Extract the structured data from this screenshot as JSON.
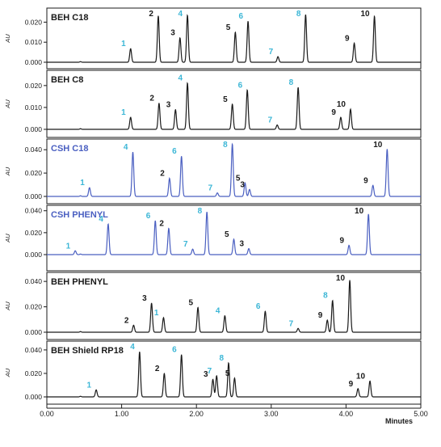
{
  "chart_data": {
    "type": "line",
    "x_range": [
      0,
      5
    ],
    "x_ticks": [
      "0.00",
      "1.00",
      "2.00",
      "3.00",
      "4.00",
      "5.00"
    ],
    "x_tick_values": [
      0,
      1,
      2,
      3,
      4,
      5
    ],
    "xlabel": "Minutes",
    "colors": {
      "black": "#1a1a1a",
      "blue": "#4a5fc1",
      "cyan": "#3bb6d6"
    },
    "panels": [
      {
        "title": "BEH C18",
        "title_color": "black",
        "trace_color": "black",
        "ylabel": "AU",
        "ylim": [
          0,
          0.025
        ],
        "y_ticks": [
          "0.000",
          "0.010",
          "0.020"
        ],
        "y_tick_values": [
          0,
          0.01,
          0.02
        ],
        "peaks": [
          {
            "label": "1",
            "color": "cyan",
            "x": 1.12,
            "y": 0.0068
          },
          {
            "label": "2",
            "color": "black",
            "x": 1.49,
            "y": 0.0232
          },
          {
            "label": "3",
            "color": "black",
            "x": 1.78,
            "y": 0.0122
          },
          {
            "label": "4",
            "color": "cyan",
            "x": 1.88,
            "y": 0.0235
          },
          {
            "label": "5",
            "color": "black",
            "x": 2.52,
            "y": 0.015
          },
          {
            "label": "6",
            "color": "cyan",
            "x": 2.69,
            "y": 0.0205
          },
          {
            "label": "7",
            "color": "cyan",
            "x": 3.09,
            "y": 0.0028
          },
          {
            "label": "8",
            "color": "cyan",
            "x": 3.46,
            "y": 0.0238
          },
          {
            "label": "9",
            "color": "black",
            "x": 4.11,
            "y": 0.0095
          },
          {
            "label": "10",
            "color": "black",
            "x": 4.38,
            "y": 0.023
          }
        ]
      },
      {
        "title": "BEH C8",
        "title_color": "black",
        "trace_color": "black",
        "ylabel": "AU",
        "ylim": [
          0,
          0.024
        ],
        "y_ticks": [
          "0.000",
          "0.010",
          "0.020"
        ],
        "y_tick_values": [
          0,
          0.01,
          0.02
        ],
        "peaks": [
          {
            "label": "1",
            "color": "cyan",
            "x": 1.12,
            "y": 0.0055
          },
          {
            "label": "2",
            "color": "black",
            "x": 1.5,
            "y": 0.012
          },
          {
            "label": "3",
            "color": "black",
            "x": 1.72,
            "y": 0.009
          },
          {
            "label": "4",
            "color": "cyan",
            "x": 1.88,
            "y": 0.0212
          },
          {
            "label": "5",
            "color": "black",
            "x": 2.48,
            "y": 0.0115
          },
          {
            "label": "6",
            "color": "cyan",
            "x": 2.68,
            "y": 0.018
          },
          {
            "label": "7",
            "color": "cyan",
            "x": 3.08,
            "y": 0.002
          },
          {
            "label": "8",
            "color": "cyan",
            "x": 3.36,
            "y": 0.0192
          },
          {
            "label": "9",
            "color": "black",
            "x": 3.93,
            "y": 0.0055
          },
          {
            "label": "10",
            "color": "black",
            "x": 4.06,
            "y": 0.0092
          }
        ]
      },
      {
        "title": "CSH C18",
        "title_color": "blue",
        "trace_color": "blue",
        "ylabel": "AU",
        "ylim": [
          0,
          0.045
        ],
        "y_ticks": [
          "0.000",
          "0.020",
          "0.040"
        ],
        "y_tick_values": [
          0,
          0.02,
          0.04
        ],
        "peaks": [
          {
            "label": "1",
            "color": "cyan",
            "x": 0.57,
            "y": 0.0075
          },
          {
            "label": "4",
            "color": "cyan",
            "x": 1.15,
            "y": 0.038
          },
          {
            "label": "2",
            "color": "black",
            "x": 1.64,
            "y": 0.0155
          },
          {
            "label": "6",
            "color": "cyan",
            "x": 1.8,
            "y": 0.0345
          },
          {
            "label": "7",
            "color": "cyan",
            "x": 2.28,
            "y": 0.003
          },
          {
            "label": "8",
            "color": "cyan",
            "x": 2.48,
            "y": 0.045
          },
          {
            "label": "5",
            "color": "black",
            "x": 2.65,
            "y": 0.0115
          },
          {
            "label": "3",
            "color": "black",
            "x": 2.71,
            "y": 0.006
          },
          {
            "label": "9",
            "color": "black",
            "x": 4.36,
            "y": 0.0095
          },
          {
            "label": "10",
            "color": "black",
            "x": 4.55,
            "y": 0.0405
          }
        ]
      },
      {
        "title": "CSH PHENYL",
        "title_color": "blue",
        "trace_color": "blue",
        "ylabel": "AU",
        "ylim": [
          0,
          0.042
        ],
        "y_ticks": [
          "0.000",
          "0.020",
          "0.040"
        ],
        "y_tick_values": [
          0,
          0.02,
          0.04
        ],
        "peaks": [
          {
            "label": "1",
            "color": "cyan",
            "x": 0.38,
            "y": 0.0035
          },
          {
            "label": "4",
            "color": "cyan",
            "x": 0.82,
            "y": 0.028
          },
          {
            "label": "6",
            "color": "cyan",
            "x": 1.45,
            "y": 0.031
          },
          {
            "label": "2",
            "color": "black",
            "x": 1.63,
            "y": 0.024
          },
          {
            "label": "7",
            "color": "cyan",
            "x": 1.95,
            "y": 0.005
          },
          {
            "label": "8",
            "color": "cyan",
            "x": 2.14,
            "y": 0.039
          },
          {
            "label": "5",
            "color": "black",
            "x": 2.5,
            "y": 0.014
          },
          {
            "label": "3",
            "color": "black",
            "x": 2.7,
            "y": 0.0055
          },
          {
            "label": "9",
            "color": "black",
            "x": 4.04,
            "y": 0.0085
          },
          {
            "label": "10",
            "color": "black",
            "x": 4.3,
            "y": 0.037
          }
        ]
      },
      {
        "title": "BEH PHENYL",
        "title_color": "black",
        "trace_color": "black",
        "ylabel": "AU",
        "ylim": [
          0,
          0.042
        ],
        "y_ticks": [
          "0.000",
          "0.020",
          "0.040"
        ],
        "y_tick_values": [
          0,
          0.02,
          0.04
        ],
        "peaks": [
          {
            "label": "2",
            "color": "black",
            "x": 1.16,
            "y": 0.0055
          },
          {
            "label": "3",
            "color": "black",
            "x": 1.4,
            "y": 0.023
          },
          {
            "label": "1",
            "color": "cyan",
            "x": 1.56,
            "y": 0.0115
          },
          {
            "label": "5",
            "color": "black",
            "x": 2.02,
            "y": 0.0195
          },
          {
            "label": "4",
            "color": "cyan",
            "x": 2.38,
            "y": 0.013
          },
          {
            "label": "6",
            "color": "cyan",
            "x": 2.92,
            "y": 0.0165
          },
          {
            "label": "7",
            "color": "cyan",
            "x": 3.36,
            "y": 0.003
          },
          {
            "label": "9",
            "color": "black",
            "x": 3.75,
            "y": 0.0095
          },
          {
            "label": "8",
            "color": "cyan",
            "x": 3.82,
            "y": 0.025
          },
          {
            "label": "10",
            "color": "black",
            "x": 4.05,
            "y": 0.041
          }
        ]
      },
      {
        "title": "BEH Shield RP18",
        "title_color": "black",
        "trace_color": "black",
        "ylabel": "AU",
        "ylim": [
          0,
          0.042
        ],
        "y_ticks": [
          "0.000",
          "0.020",
          "0.040"
        ],
        "y_tick_values": [
          0,
          0.02,
          0.04
        ],
        "peaks": [
          {
            "label": "1",
            "color": "cyan",
            "x": 0.66,
            "y": 0.006
          },
          {
            "label": "4",
            "color": "cyan",
            "x": 1.24,
            "y": 0.0385
          },
          {
            "label": "2",
            "color": "black",
            "x": 1.57,
            "y": 0.02
          },
          {
            "label": "6",
            "color": "cyan",
            "x": 1.8,
            "y": 0.036
          },
          {
            "label": "3",
            "color": "black",
            "x": 2.22,
            "y": 0.015
          },
          {
            "label": "7",
            "color": "cyan",
            "x": 2.27,
            "y": 0.018
          },
          {
            "label": "8",
            "color": "cyan",
            "x": 2.43,
            "y": 0.029
          },
          {
            "label": "5",
            "color": "black",
            "x": 2.51,
            "y": 0.016
          },
          {
            "label": "9",
            "color": "black",
            "x": 4.16,
            "y": 0.007
          },
          {
            "label": "10",
            "color": "black",
            "x": 4.32,
            "y": 0.0135
          }
        ]
      }
    ]
  }
}
